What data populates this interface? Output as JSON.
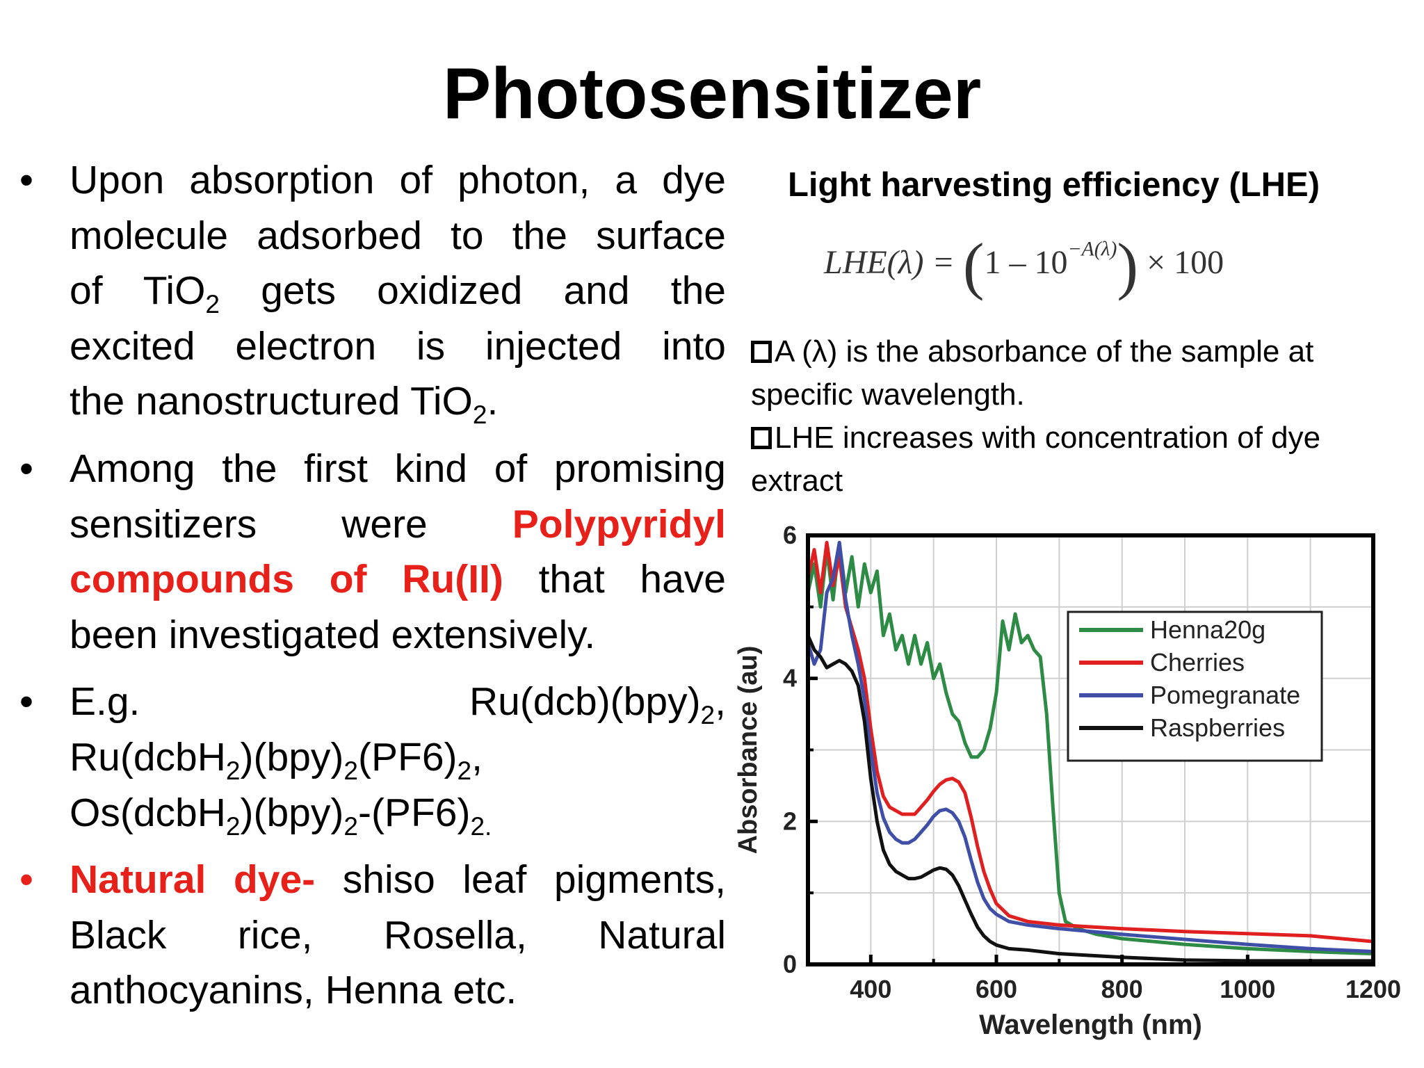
{
  "title": "Photosensitizer",
  "left": {
    "b1": {
      "l1": "Upon absorption of photon, a dye",
      "l2": "molecule adsorbed to the surface",
      "l3a": "of TiO",
      "l3sub": "2",
      "l3b": " gets oxidized and the",
      "l4": "excited electron is injected  into",
      "l5a": "the nanostructured TiO",
      "l5sub": "2",
      "l5b": "."
    },
    "b2": {
      "l1": "Among the first kind of promising",
      "l2a": "sensitizers were ",
      "l2red": "Polypyridyl",
      "l3red": "compounds of Ru(II)",
      "l3b": " that have",
      "l4": "been investigated extensively."
    },
    "b3": {
      "l1a": "E.g.",
      "l1b": "Ru(dcb)(bpy)",
      "l1sub": "2",
      "l1c": ",",
      "l2a": "Ru(dcbH",
      "l2s1": "2",
      "l2b": ")(bpy)",
      "l2s2": "2",
      "l2c": "(PF6)",
      "l2s3": "2",
      "l2d": ",",
      "l3a": "Os(dcbH",
      "l3s1": "2",
      "l3b": ")(bpy)",
      "l3s2": "2",
      "l3c": "-(PF6)",
      "l3s3": "2."
    },
    "b4": {
      "red": "Natural dye-",
      "l1b": " shiso leaf pigments,",
      "l2": "Black rice, Rosella, Natural",
      "l3": "anthocyanins, Henna etc."
    }
  },
  "right": {
    "lhe_title": "Light harvesting efficiency (LHE)",
    "formula": {
      "lhs": "LHE(λ) =",
      "open": "(",
      "one": "1 – 10",
      "exp": "−A(λ)",
      "close": ")",
      "times": "× 100"
    },
    "note1": "A (λ) is the absorbance of the sample at specific wavelength.",
    "note2": "LHE increases with concentration of dye extract"
  },
  "chart_data": {
    "type": "line",
    "xlabel": "Wavelength (nm)",
    "ylabel": "Absorbance (au)",
    "xlim": [
      300,
      1200
    ],
    "ylim": [
      0,
      6
    ],
    "xticks": [
      "400",
      "600",
      "800",
      "1000",
      "1200"
    ],
    "yticks": [
      "0",
      "2",
      "4",
      "6"
    ],
    "grid": true,
    "legend": "top-right",
    "series": [
      {
        "name": "Henna20g",
        "color": "#2e8b45",
        "points": [
          [
            300,
            5.2
          ],
          [
            310,
            5.6
          ],
          [
            320,
            5.0
          ],
          [
            330,
            5.8
          ],
          [
            340,
            5.1
          ],
          [
            350,
            5.9
          ],
          [
            360,
            5.2
          ],
          [
            370,
            5.7
          ],
          [
            380,
            5.0
          ],
          [
            390,
            5.6
          ],
          [
            400,
            5.2
          ],
          [
            410,
            5.5
          ],
          [
            420,
            4.6
          ],
          [
            430,
            4.9
          ],
          [
            440,
            4.4
          ],
          [
            450,
            4.6
          ],
          [
            460,
            4.2
          ],
          [
            470,
            4.6
          ],
          [
            480,
            4.2
          ],
          [
            490,
            4.5
          ],
          [
            500,
            4.0
          ],
          [
            510,
            4.2
          ],
          [
            520,
            3.8
          ],
          [
            530,
            3.5
          ],
          [
            540,
            3.4
          ],
          [
            550,
            3.1
          ],
          [
            560,
            2.9
          ],
          [
            570,
            2.9
          ],
          [
            580,
            3.0
          ],
          [
            590,
            3.3
          ],
          [
            600,
            3.8
          ],
          [
            610,
            4.8
          ],
          [
            620,
            4.4
          ],
          [
            630,
            4.9
          ],
          [
            640,
            4.5
          ],
          [
            650,
            4.6
          ],
          [
            660,
            4.4
          ],
          [
            670,
            4.3
          ],
          [
            680,
            3.5
          ],
          [
            690,
            2.2
          ],
          [
            700,
            1.0
          ],
          [
            710,
            0.6
          ],
          [
            720,
            0.55
          ],
          [
            730,
            0.5
          ],
          [
            760,
            0.42
          ],
          [
            800,
            0.36
          ],
          [
            900,
            0.28
          ],
          [
            1000,
            0.22
          ],
          [
            1100,
            0.18
          ],
          [
            1200,
            0.15
          ]
        ]
      },
      {
        "name": "Cherries",
        "color": "#e02020",
        "points": [
          [
            300,
            5.4
          ],
          [
            310,
            5.8
          ],
          [
            320,
            5.2
          ],
          [
            330,
            5.9
          ],
          [
            340,
            5.3
          ],
          [
            350,
            5.7
          ],
          [
            360,
            5.0
          ],
          [
            370,
            4.7
          ],
          [
            380,
            4.4
          ],
          [
            390,
            4.0
          ],
          [
            400,
            3.3
          ],
          [
            410,
            2.7
          ],
          [
            420,
            2.35
          ],
          [
            430,
            2.2
          ],
          [
            440,
            2.15
          ],
          [
            450,
            2.1
          ],
          [
            460,
            2.1
          ],
          [
            470,
            2.1
          ],
          [
            480,
            2.2
          ],
          [
            490,
            2.3
          ],
          [
            500,
            2.42
          ],
          [
            510,
            2.52
          ],
          [
            520,
            2.58
          ],
          [
            530,
            2.6
          ],
          [
            540,
            2.55
          ],
          [
            550,
            2.4
          ],
          [
            560,
            2.05
          ],
          [
            570,
            1.65
          ],
          [
            580,
            1.3
          ],
          [
            590,
            1.05
          ],
          [
            600,
            0.85
          ],
          [
            620,
            0.68
          ],
          [
            650,
            0.6
          ],
          [
            700,
            0.55
          ],
          [
            800,
            0.5
          ],
          [
            900,
            0.46
          ],
          [
            1000,
            0.43
          ],
          [
            1100,
            0.4
          ],
          [
            1200,
            0.32
          ]
        ]
      },
      {
        "name": "Pomegranate",
        "color": "#3f4fa8",
        "points": [
          [
            300,
            4.5
          ],
          [
            310,
            4.2
          ],
          [
            320,
            4.4
          ],
          [
            330,
            5.2
          ],
          [
            340,
            5.4
          ],
          [
            350,
            5.9
          ],
          [
            360,
            5.1
          ],
          [
            370,
            4.6
          ],
          [
            380,
            4.2
          ],
          [
            390,
            3.7
          ],
          [
            400,
            3.0
          ],
          [
            410,
            2.4
          ],
          [
            420,
            2.05
          ],
          [
            430,
            1.85
          ],
          [
            440,
            1.75
          ],
          [
            450,
            1.7
          ],
          [
            460,
            1.7
          ],
          [
            470,
            1.75
          ],
          [
            480,
            1.85
          ],
          [
            490,
            1.95
          ],
          [
            500,
            2.07
          ],
          [
            510,
            2.15
          ],
          [
            520,
            2.17
          ],
          [
            530,
            2.12
          ],
          [
            540,
            2.0
          ],
          [
            550,
            1.78
          ],
          [
            560,
            1.45
          ],
          [
            570,
            1.15
          ],
          [
            580,
            0.92
          ],
          [
            590,
            0.78
          ],
          [
            600,
            0.7
          ],
          [
            620,
            0.6
          ],
          [
            650,
            0.55
          ],
          [
            700,
            0.5
          ],
          [
            800,
            0.42
          ],
          [
            900,
            0.35
          ],
          [
            1000,
            0.28
          ],
          [
            1100,
            0.22
          ],
          [
            1200,
            0.18
          ]
        ]
      },
      {
        "name": "Raspberries",
        "color": "#111111",
        "points": [
          [
            300,
            4.6
          ],
          [
            310,
            4.4
          ],
          [
            320,
            4.3
          ],
          [
            330,
            4.15
          ],
          [
            340,
            4.2
          ],
          [
            350,
            4.25
          ],
          [
            360,
            4.2
          ],
          [
            370,
            4.1
          ],
          [
            380,
            3.9
          ],
          [
            390,
            3.4
          ],
          [
            400,
            2.6
          ],
          [
            410,
            2.0
          ],
          [
            420,
            1.6
          ],
          [
            430,
            1.4
          ],
          [
            440,
            1.3
          ],
          [
            450,
            1.25
          ],
          [
            460,
            1.2
          ],
          [
            470,
            1.2
          ],
          [
            480,
            1.22
          ],
          [
            490,
            1.27
          ],
          [
            500,
            1.32
          ],
          [
            510,
            1.35
          ],
          [
            520,
            1.33
          ],
          [
            530,
            1.25
          ],
          [
            540,
            1.1
          ],
          [
            550,
            0.9
          ],
          [
            560,
            0.7
          ],
          [
            570,
            0.52
          ],
          [
            580,
            0.4
          ],
          [
            590,
            0.32
          ],
          [
            600,
            0.27
          ],
          [
            620,
            0.22
          ],
          [
            650,
            0.2
          ],
          [
            700,
            0.15
          ],
          [
            800,
            0.1
          ],
          [
            900,
            0.06
          ],
          [
            1000,
            0.05
          ],
          [
            1100,
            0.05
          ],
          [
            1200,
            0.05
          ]
        ]
      }
    ]
  }
}
